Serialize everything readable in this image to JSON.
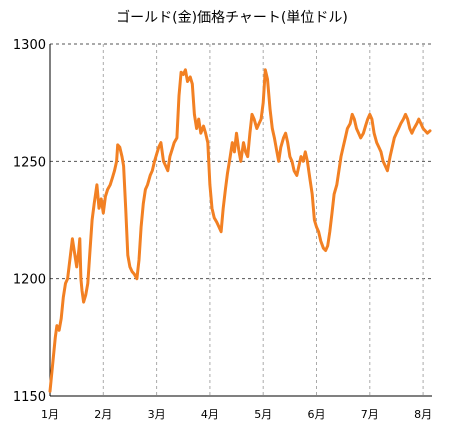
{
  "chart_data": {
    "type": "line",
    "title": "ゴールド(金)価格チャート(単位ドル)",
    "xlabel": "",
    "ylabel": "",
    "ylim": [
      1150,
      1300
    ],
    "y_ticks": [
      {
        "value": 1300,
        "label": "1300"
      },
      {
        "value": 1250,
        "label": "1250"
      },
      {
        "value": 1200,
        "label": "1200"
      },
      {
        "value": 1150,
        "label": "1150"
      }
    ],
    "x_ticks": [
      {
        "value": 0,
        "label": "1月"
      },
      {
        "value": 1,
        "label": "2月"
      },
      {
        "value": 2,
        "label": "3月"
      },
      {
        "value": 3,
        "label": "4月"
      },
      {
        "value": 4,
        "label": "5月"
      },
      {
        "value": 5,
        "label": "6月"
      },
      {
        "value": 6,
        "label": "7月"
      },
      {
        "value": 7,
        "label": "8月"
      }
    ],
    "xlim": [
      0,
      7.2
    ],
    "grid": {
      "vertical": true,
      "horizontal": true,
      "style": "dashed"
    },
    "series": [
      {
        "color": "#f28023",
        "x": [
          0.0,
          0.1,
          0.13,
          0.17,
          0.21,
          0.25,
          0.29,
          0.33,
          0.42,
          0.5,
          0.54,
          0.56,
          0.58,
          0.6,
          0.63,
          0.67,
          0.71,
          0.75,
          0.79,
          0.83,
          0.88,
          0.92,
          0.96,
          1.0,
          1.04,
          1.08,
          1.13,
          1.17,
          1.21,
          1.25,
          1.27,
          1.31,
          1.35,
          1.38,
          1.42,
          1.46,
          1.5,
          1.54,
          1.58,
          1.63,
          1.67,
          1.71,
          1.75,
          1.79,
          1.83,
          1.88,
          1.92,
          1.96,
          2.0,
          2.04,
          2.08,
          2.13,
          2.17,
          2.21,
          2.25,
          2.29,
          2.33,
          2.38,
          2.42,
          2.46,
          2.5,
          2.54,
          2.58,
          2.63,
          2.67,
          2.71,
          2.75,
          2.79,
          2.83,
          2.88,
          2.92,
          2.96,
          3.0,
          3.04,
          3.08,
          3.13,
          3.17,
          3.21,
          3.25,
          3.29,
          3.33,
          3.38,
          3.42,
          3.46,
          3.5,
          3.54,
          3.58,
          3.63,
          3.67,
          3.71,
          3.75,
          3.79,
          3.83,
          3.88,
          3.92,
          3.96,
          4.0,
          4.04,
          4.08,
          4.13,
          4.17,
          4.21,
          4.25,
          4.29,
          4.33,
          4.38,
          4.42,
          4.46,
          4.5,
          4.54,
          4.58,
          4.63,
          4.67,
          4.71,
          4.75,
          4.79,
          4.83,
          4.88,
          4.92,
          4.96,
          5.0,
          5.04,
          5.08,
          5.13,
          5.17,
          5.21,
          5.25,
          5.29,
          5.33,
          5.38,
          5.42,
          5.46,
          5.5,
          5.54,
          5.58,
          5.63,
          5.67,
          5.71,
          5.75,
          5.79,
          5.83,
          5.88,
          5.92,
          5.96,
          6.0,
          6.04,
          6.08,
          6.13,
          6.17,
          6.21,
          6.25,
          6.29,
          6.33,
          6.38,
          6.42,
          6.46,
          6.5,
          6.54,
          6.58,
          6.63,
          6.67,
          6.71,
          6.75,
          6.79,
          6.83,
          6.88,
          6.92,
          6.96,
          7.0,
          7.04,
          7.08,
          7.13
        ],
        "y": [
          1152,
          1175,
          1180,
          1178,
          1183,
          1192,
          1198,
          1200,
          1217,
          1205,
          1212,
          1217,
          1200,
          1195,
          1190,
          1193,
          1198,
          1212,
          1225,
          1232,
          1240,
          1230,
          1234,
          1228,
          1235,
          1238,
          1240,
          1243,
          1246,
          1250,
          1257,
          1256,
          1252,
          1248,
          1230,
          1210,
          1205,
          1203,
          1202,
          1200,
          1208,
          1222,
          1232,
          1238,
          1240,
          1244,
          1246,
          1250,
          1253,
          1256,
          1258,
          1250,
          1248,
          1246,
          1252,
          1255,
          1258,
          1260,
          1278,
          1288,
          1287,
          1289,
          1284,
          1286,
          1283,
          1270,
          1264,
          1268,
          1262,
          1265,
          1262,
          1258,
          1240,
          1230,
          1226,
          1224,
          1222,
          1220,
          1230,
          1238,
          1245,
          1252,
          1258,
          1254,
          1262,
          1255,
          1250,
          1258,
          1254,
          1252,
          1262,
          1270,
          1268,
          1264,
          1266,
          1268,
          1275,
          1289,
          1285,
          1272,
          1264,
          1260,
          1255,
          1250,
          1256,
          1260,
          1262,
          1258,
          1252,
          1250,
          1246,
          1244,
          1248,
          1252,
          1250,
          1254,
          1250,
          1242,
          1236,
          1225,
          1222,
          1220,
          1216,
          1213,
          1212,
          1214,
          1220,
          1228,
          1236,
          1240,
          1246,
          1252,
          1256,
          1260,
          1264,
          1266,
          1270,
          1268,
          1264,
          1262,
          1260,
          1262,
          1265,
          1268,
          1270,
          1268,
          1262,
          1258,
          1256,
          1254,
          1250,
          1248,
          1246,
          1252,
          1256,
          1260,
          1262,
          1264,
          1266,
          1268,
          1270,
          1268,
          1264,
          1262,
          1264,
          1266,
          1268,
          1266,
          1264,
          1263,
          1262,
          1263
        ]
      }
    ]
  }
}
